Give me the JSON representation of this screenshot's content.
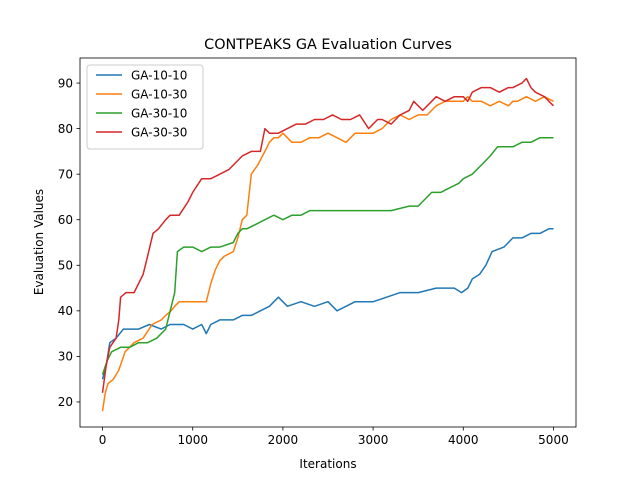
{
  "chart_data": {
    "type": "line",
    "title": "CONTPEAKS GA Evaluation Curves",
    "xlabel": "Iterations",
    "ylabel": "Evaluation Values",
    "xlim": [
      -250,
      5250
    ],
    "ylim": [
      14.5,
      95.5
    ],
    "xticks": [
      0,
      1000,
      2000,
      3000,
      4000,
      5000
    ],
    "yticks": [
      20,
      30,
      40,
      50,
      60,
      70,
      80,
      90
    ],
    "legend_position": "top-left",
    "grid": false,
    "series": [
      {
        "name": "GA-10-10",
        "color": "#1f77b4",
        "points": [
          [
            0,
            25
          ],
          [
            40,
            28
          ],
          [
            80,
            33
          ],
          [
            150,
            34
          ],
          [
            230,
            36
          ],
          [
            400,
            36
          ],
          [
            520,
            37
          ],
          [
            650,
            36
          ],
          [
            750,
            37
          ],
          [
            900,
            37
          ],
          [
            1000,
            36
          ],
          [
            1100,
            37
          ],
          [
            1150,
            35
          ],
          [
            1200,
            37
          ],
          [
            1300,
            38
          ],
          [
            1450,
            38
          ],
          [
            1550,
            39
          ],
          [
            1650,
            39
          ],
          [
            1750,
            40
          ],
          [
            1850,
            41
          ],
          [
            1950,
            43
          ],
          [
            2050,
            41
          ],
          [
            2200,
            42
          ],
          [
            2350,
            41
          ],
          [
            2500,
            42
          ],
          [
            2600,
            40
          ],
          [
            2700,
            41
          ],
          [
            2800,
            42
          ],
          [
            3000,
            42
          ],
          [
            3150,
            43
          ],
          [
            3300,
            44
          ],
          [
            3500,
            44
          ],
          [
            3700,
            45
          ],
          [
            3900,
            45
          ],
          [
            3980,
            44
          ],
          [
            4050,
            45
          ],
          [
            4100,
            47
          ],
          [
            4180,
            48
          ],
          [
            4250,
            50
          ],
          [
            4320,
            53
          ],
          [
            4450,
            54
          ],
          [
            4550,
            56
          ],
          [
            4650,
            56
          ],
          [
            4750,
            57
          ],
          [
            4850,
            57
          ],
          [
            4950,
            58
          ],
          [
            5000,
            58
          ]
        ]
      },
      {
        "name": "GA-10-30",
        "color": "#ff7f0e",
        "points": [
          [
            0,
            18
          ],
          [
            30,
            22
          ],
          [
            60,
            24
          ],
          [
            120,
            25
          ],
          [
            180,
            27
          ],
          [
            250,
            31
          ],
          [
            350,
            33
          ],
          [
            450,
            34
          ],
          [
            550,
            37
          ],
          [
            650,
            38
          ],
          [
            700,
            39
          ],
          [
            760,
            40
          ],
          [
            800,
            41
          ],
          [
            850,
            42
          ],
          [
            950,
            42
          ],
          [
            1050,
            42
          ],
          [
            1150,
            42
          ],
          [
            1200,
            46
          ],
          [
            1250,
            49
          ],
          [
            1300,
            51
          ],
          [
            1350,
            52
          ],
          [
            1450,
            53
          ],
          [
            1500,
            56
          ],
          [
            1550,
            60
          ],
          [
            1600,
            61
          ],
          [
            1650,
            70
          ],
          [
            1720,
            72
          ],
          [
            1800,
            75
          ],
          [
            1850,
            77
          ],
          [
            1900,
            78
          ],
          [
            1950,
            78
          ],
          [
            2000,
            79
          ],
          [
            2100,
            77
          ],
          [
            2200,
            77
          ],
          [
            2300,
            78
          ],
          [
            2400,
            78
          ],
          [
            2500,
            79
          ],
          [
            2600,
            78
          ],
          [
            2700,
            77
          ],
          [
            2800,
            79
          ],
          [
            2900,
            79
          ],
          [
            3000,
            79
          ],
          [
            3100,
            80
          ],
          [
            3200,
            82
          ],
          [
            3300,
            83
          ],
          [
            3400,
            82
          ],
          [
            3500,
            83
          ],
          [
            3600,
            83
          ],
          [
            3700,
            85
          ],
          [
            3800,
            86
          ],
          [
            3900,
            86
          ],
          [
            4000,
            86
          ],
          [
            4050,
            87
          ],
          [
            4100,
            86
          ],
          [
            4200,
            86
          ],
          [
            4300,
            85
          ],
          [
            4400,
            86
          ],
          [
            4500,
            85
          ],
          [
            4550,
            86
          ],
          [
            4600,
            86
          ],
          [
            4700,
            87
          ],
          [
            4800,
            86
          ],
          [
            4900,
            87
          ],
          [
            5000,
            86
          ]
        ]
      },
      {
        "name": "GA-30-10",
        "color": "#2ca02c",
        "points": [
          [
            0,
            26
          ],
          [
            50,
            29
          ],
          [
            100,
            31
          ],
          [
            200,
            32
          ],
          [
            300,
            32
          ],
          [
            400,
            33
          ],
          [
            500,
            33
          ],
          [
            600,
            34
          ],
          [
            700,
            36
          ],
          [
            800,
            44
          ],
          [
            830,
            53
          ],
          [
            900,
            54
          ],
          [
            1000,
            54
          ],
          [
            1100,
            53
          ],
          [
            1200,
            54
          ],
          [
            1300,
            54
          ],
          [
            1450,
            55
          ],
          [
            1500,
            57
          ],
          [
            1550,
            58
          ],
          [
            1600,
            58
          ],
          [
            1700,
            59
          ],
          [
            1800,
            60
          ],
          [
            1900,
            61
          ],
          [
            2000,
            60
          ],
          [
            2100,
            61
          ],
          [
            2200,
            61
          ],
          [
            2300,
            62
          ],
          [
            2400,
            62
          ],
          [
            2500,
            62
          ],
          [
            2600,
            62
          ],
          [
            2800,
            62
          ],
          [
            3000,
            62
          ],
          [
            3200,
            62
          ],
          [
            3400,
            63
          ],
          [
            3500,
            63
          ],
          [
            3550,
            64
          ],
          [
            3650,
            66
          ],
          [
            3750,
            66
          ],
          [
            3850,
            67
          ],
          [
            3950,
            68
          ],
          [
            4000,
            69
          ],
          [
            4100,
            70
          ],
          [
            4200,
            72
          ],
          [
            4300,
            74
          ],
          [
            4380,
            76
          ],
          [
            4450,
            76
          ],
          [
            4550,
            76
          ],
          [
            4650,
            77
          ],
          [
            4750,
            77
          ],
          [
            4850,
            78
          ],
          [
            4950,
            78
          ],
          [
            5000,
            78
          ]
        ]
      },
      {
        "name": "GA-30-30",
        "color": "#d62728",
        "points": [
          [
            0,
            22
          ],
          [
            40,
            28
          ],
          [
            80,
            32
          ],
          [
            150,
            34
          ],
          [
            180,
            38
          ],
          [
            200,
            43
          ],
          [
            260,
            44
          ],
          [
            350,
            44
          ],
          [
            400,
            46
          ],
          [
            450,
            48
          ],
          [
            500,
            52
          ],
          [
            560,
            57
          ],
          [
            620,
            58
          ],
          [
            700,
            60
          ],
          [
            750,
            61
          ],
          [
            850,
            61
          ],
          [
            950,
            64
          ],
          [
            1000,
            66
          ],
          [
            1100,
            69
          ],
          [
            1200,
            69
          ],
          [
            1300,
            70
          ],
          [
            1400,
            71
          ],
          [
            1500,
            73
          ],
          [
            1550,
            74
          ],
          [
            1650,
            75
          ],
          [
            1750,
            75
          ],
          [
            1800,
            80
          ],
          [
            1850,
            79
          ],
          [
            1950,
            79
          ],
          [
            2050,
            80
          ],
          [
            2150,
            81
          ],
          [
            2250,
            81
          ],
          [
            2350,
            82
          ],
          [
            2450,
            82
          ],
          [
            2550,
            83
          ],
          [
            2650,
            82
          ],
          [
            2750,
            82
          ],
          [
            2850,
            83
          ],
          [
            2950,
            80
          ],
          [
            3050,
            82
          ],
          [
            3100,
            82
          ],
          [
            3200,
            81
          ],
          [
            3300,
            83
          ],
          [
            3400,
            84
          ],
          [
            3450,
            86
          ],
          [
            3550,
            84
          ],
          [
            3650,
            86
          ],
          [
            3700,
            87
          ],
          [
            3800,
            86
          ],
          [
            3900,
            87
          ],
          [
            4000,
            87
          ],
          [
            4050,
            86
          ],
          [
            4100,
            88
          ],
          [
            4200,
            89
          ],
          [
            4300,
            89
          ],
          [
            4400,
            88
          ],
          [
            4500,
            89
          ],
          [
            4550,
            89
          ],
          [
            4650,
            90
          ],
          [
            4700,
            91
          ],
          [
            4750,
            89
          ],
          [
            4800,
            88
          ],
          [
            4900,
            87
          ],
          [
            5000,
            85
          ]
        ]
      }
    ]
  }
}
